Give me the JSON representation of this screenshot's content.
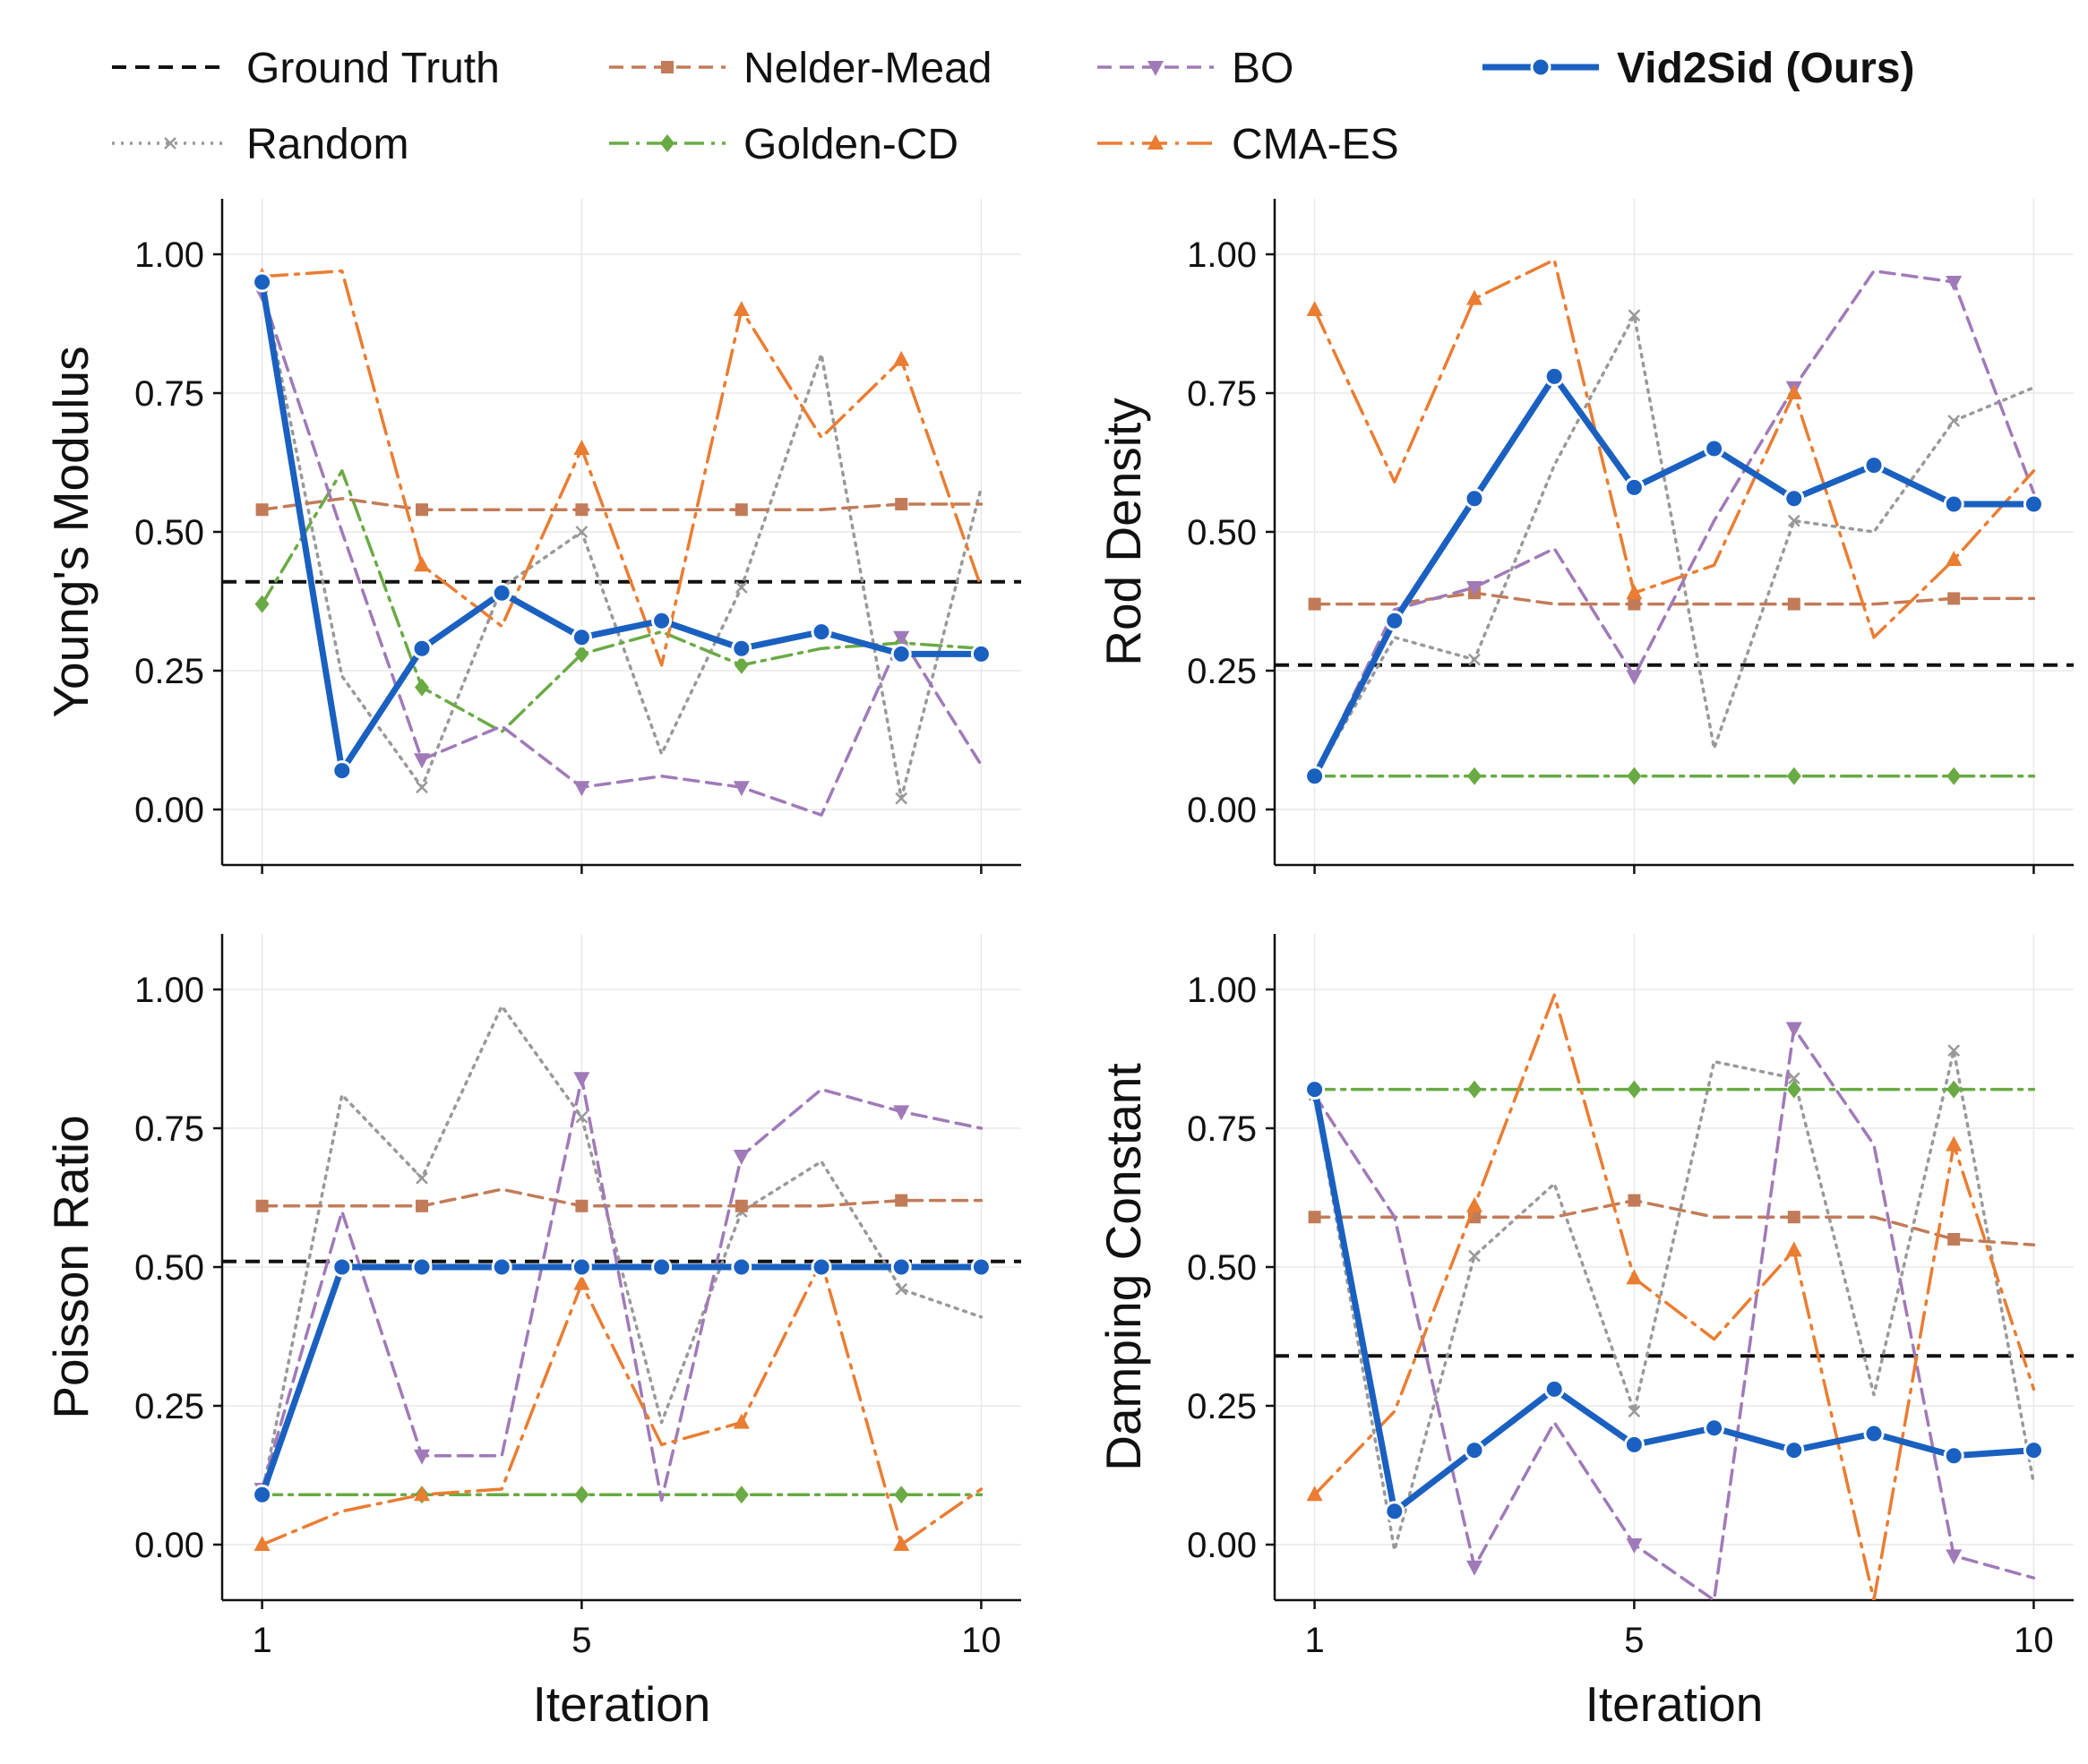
{
  "legend": [
    {
      "key": "gt",
      "label": "Ground Truth"
    },
    {
      "key": "nm",
      "label": "Nelder-Mead"
    },
    {
      "key": "bo",
      "label": "BO"
    },
    {
      "key": "ours",
      "label": "Vid2Sid (Ours)"
    },
    {
      "key": "rand",
      "label": "Random"
    },
    {
      "key": "gcd",
      "label": "Golden-CD"
    },
    {
      "key": "cma",
      "label": "CMA-ES"
    }
  ],
  "styles": {
    "gt": {
      "color": "#111111",
      "dash": "16 10",
      "width": 4,
      "marker": "none"
    },
    "rand": {
      "color": "#999999",
      "dash": "3 7",
      "width": 3.5,
      "marker": "x"
    },
    "nm": {
      "color": "#c27b58",
      "dash": "16 9",
      "width": 3.5,
      "marker": "square"
    },
    "gcd": {
      "color": "#6aaa45",
      "dash": "22 8 4 8",
      "width": 3.5,
      "marker": "diamond"
    },
    "bo": {
      "color": "#a07ab8",
      "dash": "16 9",
      "width": 3.5,
      "marker": "tri-down"
    },
    "cma": {
      "color": "#ea7d32",
      "dash": "28 9 4 9",
      "width": 3.5,
      "marker": "tri-up"
    },
    "ours": {
      "color": "#1a60c0",
      "dash": "",
      "width": 7,
      "marker": "circle"
    }
  },
  "chart_data": [
    {
      "type": "line",
      "ylabel": "Young's Modulus",
      "xlabel": "",
      "ylim": [
        -0.1,
        1.1
      ],
      "xlim": [
        0.5,
        10.5
      ],
      "yticks": [
        "0.00",
        "0.25",
        "0.50",
        "0.75",
        "1.00"
      ],
      "xticks": [],
      "ground_truth": 0.41,
      "series": [
        {
          "key": "rand",
          "name": "Random",
          "x": [
            1,
            2,
            3,
            4,
            5,
            6,
            7,
            8,
            9,
            10
          ],
          "values": [
            0.95,
            0.24,
            0.04,
            0.4,
            0.5,
            0.1,
            0.4,
            0.82,
            0.02,
            0.58
          ]
        },
        {
          "key": "nm",
          "name": "Nelder-Mead",
          "x": [
            1,
            2,
            3,
            4,
            5,
            6,
            7,
            8,
            9,
            10
          ],
          "values": [
            0.54,
            0.56,
            0.54,
            0.54,
            0.54,
            0.54,
            0.54,
            0.54,
            0.55,
            0.55
          ]
        },
        {
          "key": "gcd",
          "name": "Golden-CD",
          "x": [
            1,
            2,
            3,
            4,
            5,
            6,
            7,
            8,
            9,
            10
          ],
          "values": [
            0.37,
            0.61,
            0.22,
            0.14,
            0.28,
            0.32,
            0.26,
            0.29,
            0.3,
            0.29
          ]
        },
        {
          "key": "bo",
          "name": "BO",
          "x": [
            1,
            2,
            3,
            4,
            5,
            6,
            7,
            8,
            9,
            10
          ],
          "values": [
            0.93,
            0.5,
            0.09,
            0.15,
            0.04,
            0.06,
            0.04,
            -0.01,
            0.31,
            0.08
          ]
        },
        {
          "key": "cma",
          "name": "CMA-ES",
          "x": [
            1,
            2,
            3,
            4,
            5,
            6,
            7,
            8,
            9,
            10
          ],
          "values": [
            0.96,
            0.97,
            0.44,
            0.33,
            0.65,
            0.26,
            0.9,
            0.67,
            0.81,
            0.4
          ]
        },
        {
          "key": "ours",
          "name": "Vid2Sid (Ours)",
          "x": [
            1,
            2,
            3,
            4,
            5,
            6,
            7,
            8,
            9,
            10
          ],
          "values": [
            0.95,
            0.07,
            0.29,
            0.39,
            0.31,
            0.34,
            0.29,
            0.32,
            0.28,
            0.28
          ]
        }
      ]
    },
    {
      "type": "line",
      "ylabel": "Rod Density",
      "xlabel": "",
      "ylim": [
        -0.1,
        1.1
      ],
      "xlim": [
        0.5,
        10.5
      ],
      "yticks": [
        "0.00",
        "0.25",
        "0.50",
        "0.75",
        "1.00"
      ],
      "xticks": [],
      "ground_truth": 0.26,
      "series": [
        {
          "key": "rand",
          "name": "Random",
          "x": [
            1,
            2,
            3,
            4,
            5,
            6,
            7,
            8,
            9,
            10
          ],
          "values": [
            0.06,
            0.31,
            0.27,
            0.62,
            0.89,
            0.11,
            0.52,
            0.5,
            0.7,
            0.76
          ]
        },
        {
          "key": "nm",
          "name": "Nelder-Mead",
          "x": [
            1,
            2,
            3,
            4,
            5,
            6,
            7,
            8,
            9,
            10
          ],
          "values": [
            0.37,
            0.37,
            0.39,
            0.37,
            0.37,
            0.37,
            0.37,
            0.37,
            0.38,
            0.38
          ]
        },
        {
          "key": "gcd",
          "name": "Golden-CD",
          "x": [
            1,
            2,
            3,
            4,
            5,
            6,
            7,
            8,
            9,
            10
          ],
          "values": [
            0.06,
            0.06,
            0.06,
            0.06,
            0.06,
            0.06,
            0.06,
            0.06,
            0.06,
            0.06
          ]
        },
        {
          "key": "bo",
          "name": "BO",
          "x": [
            1,
            2,
            3,
            4,
            5,
            6,
            7,
            8,
            9,
            10
          ],
          "values": [
            0.06,
            0.36,
            0.4,
            0.47,
            0.24,
            0.52,
            0.76,
            0.97,
            0.95,
            0.57
          ]
        },
        {
          "key": "cma",
          "name": "CMA-ES",
          "x": [
            1,
            2,
            3,
            4,
            5,
            6,
            7,
            8,
            9,
            10
          ],
          "values": [
            0.9,
            0.59,
            0.92,
            0.99,
            0.39,
            0.44,
            0.75,
            0.31,
            0.45,
            0.61
          ]
        },
        {
          "key": "ours",
          "name": "Vid2Sid (Ours)",
          "x": [
            1,
            2,
            3,
            4,
            5,
            6,
            7,
            8,
            9,
            10
          ],
          "values": [
            0.06,
            0.34,
            0.56,
            0.78,
            0.58,
            0.65,
            0.56,
            0.62,
            0.55,
            0.55
          ]
        }
      ]
    },
    {
      "type": "line",
      "ylabel": "Poisson Ratio",
      "xlabel": "Iteration",
      "ylim": [
        -0.1,
        1.1
      ],
      "xlim": [
        0.5,
        10.5
      ],
      "yticks": [
        "0.00",
        "0.25",
        "0.50",
        "0.75",
        "1.00"
      ],
      "xticks": [
        "1",
        "5",
        "10"
      ],
      "ground_truth": 0.51,
      "series": [
        {
          "key": "rand",
          "name": "Random",
          "x": [
            1,
            2,
            3,
            4,
            5,
            6,
            7,
            8,
            9,
            10
          ],
          "values": [
            0.09,
            0.81,
            0.66,
            0.97,
            0.77,
            0.22,
            0.6,
            0.69,
            0.46,
            0.41
          ]
        },
        {
          "key": "nm",
          "name": "Nelder-Mead",
          "x": [
            1,
            2,
            3,
            4,
            5,
            6,
            7,
            8,
            9,
            10
          ],
          "values": [
            0.61,
            0.61,
            0.61,
            0.64,
            0.61,
            0.61,
            0.61,
            0.61,
            0.62,
            0.62
          ]
        },
        {
          "key": "gcd",
          "name": "Golden-CD",
          "x": [
            1,
            2,
            3,
            4,
            5,
            6,
            7,
            8,
            9,
            10
          ],
          "values": [
            0.09,
            0.09,
            0.09,
            0.09,
            0.09,
            0.09,
            0.09,
            0.09,
            0.09,
            0.09
          ]
        },
        {
          "key": "bo",
          "name": "BO",
          "x": [
            1,
            2,
            3,
            4,
            5,
            6,
            7,
            8,
            9,
            10
          ],
          "values": [
            0.1,
            0.6,
            0.16,
            0.16,
            0.84,
            0.08,
            0.7,
            0.82,
            0.78,
            0.75
          ]
        },
        {
          "key": "cma",
          "name": "CMA-ES",
          "x": [
            1,
            2,
            3,
            4,
            5,
            6,
            7,
            8,
            9,
            10
          ],
          "values": [
            0.0,
            0.06,
            0.09,
            0.1,
            0.47,
            0.18,
            0.22,
            0.51,
            0.0,
            0.1
          ]
        },
        {
          "key": "ours",
          "name": "Vid2Sid (Ours)",
          "x": [
            1,
            2,
            3,
            4,
            5,
            6,
            7,
            8,
            9,
            10
          ],
          "values": [
            0.09,
            0.5,
            0.5,
            0.5,
            0.5,
            0.5,
            0.5,
            0.5,
            0.5,
            0.5
          ]
        }
      ]
    },
    {
      "type": "line",
      "ylabel": "Damping Constant",
      "xlabel": "Iteration",
      "ylim": [
        -0.1,
        1.1
      ],
      "xlim": [
        0.5,
        10.5
      ],
      "yticks": [
        "0.00",
        "0.25",
        "0.50",
        "0.75",
        "1.00"
      ],
      "xticks": [
        "1",
        "5",
        "10"
      ],
      "ground_truth": 0.34,
      "series": [
        {
          "key": "rand",
          "name": "Random",
          "x": [
            1,
            2,
            3,
            4,
            5,
            6,
            7,
            8,
            9,
            10
          ],
          "values": [
            0.81,
            -0.01,
            0.52,
            0.65,
            0.24,
            0.87,
            0.84,
            0.27,
            0.89,
            0.11
          ]
        },
        {
          "key": "nm",
          "name": "Nelder-Mead",
          "x": [
            1,
            2,
            3,
            4,
            5,
            6,
            7,
            8,
            9,
            10
          ],
          "values": [
            0.59,
            0.59,
            0.59,
            0.59,
            0.62,
            0.59,
            0.59,
            0.59,
            0.55,
            0.54
          ]
        },
        {
          "key": "gcd",
          "name": "Golden-CD",
          "x": [
            1,
            2,
            3,
            4,
            5,
            6,
            7,
            8,
            9,
            10
          ],
          "values": [
            0.82,
            0.82,
            0.82,
            0.82,
            0.82,
            0.82,
            0.82,
            0.82,
            0.82,
            0.82
          ]
        },
        {
          "key": "bo",
          "name": "BO",
          "x": [
            1,
            2,
            3,
            4,
            5,
            6,
            7,
            8,
            9,
            10
          ],
          "values": [
            0.81,
            0.59,
            -0.04,
            0.22,
            0.0,
            -0.1,
            0.93,
            0.72,
            -0.02,
            -0.06
          ]
        },
        {
          "key": "cma",
          "name": "CMA-ES",
          "x": [
            1,
            2,
            3,
            4,
            5,
            6,
            7,
            8,
            9,
            10
          ],
          "values": [
            0.09,
            0.24,
            0.61,
            0.99,
            0.48,
            0.37,
            0.53,
            -0.1,
            0.72,
            0.28
          ]
        },
        {
          "key": "ours",
          "name": "Vid2Sid (Ours)",
          "x": [
            1,
            2,
            3,
            4,
            5,
            6,
            7,
            8,
            9,
            10
          ],
          "values": [
            0.82,
            0.06,
            0.17,
            0.28,
            0.18,
            0.21,
            0.17,
            0.2,
            0.16,
            0.17
          ]
        }
      ]
    }
  ]
}
